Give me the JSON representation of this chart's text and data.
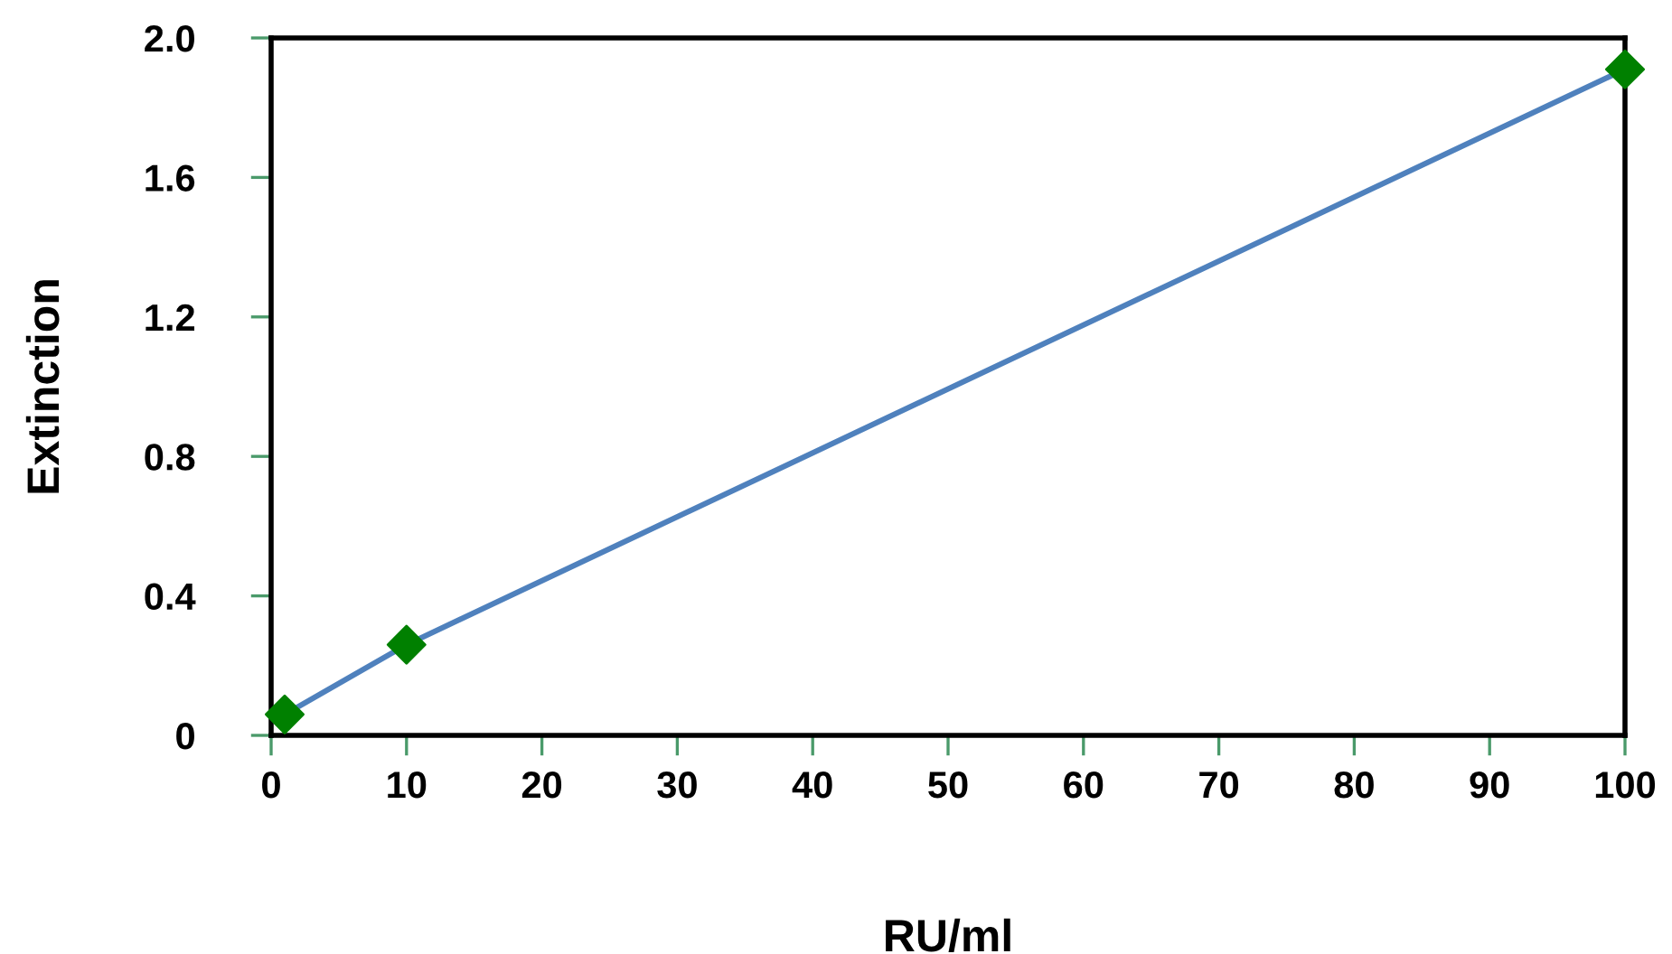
{
  "chart_data": {
    "type": "line",
    "xlabel": "RU/ml",
    "ylabel": "Extinction",
    "x": [
      1,
      10,
      100
    ],
    "series": [
      {
        "color": "#4f81bd",
        "colors": [
          "#008000",
          "#008000",
          "#008000"
        ],
        "values": [
          0.06,
          0.26,
          1.91
        ]
      }
    ],
    "marker": "diamond",
    "line_style": "solid",
    "grid": false,
    "legend": false,
    "xlim": [
      0,
      100
    ],
    "xticks": [
      0,
      10,
      20,
      30,
      40,
      50,
      60,
      70,
      80,
      90,
      100
    ],
    "ylim": [
      0,
      2.0
    ],
    "yticks": [
      0,
      {
        "value": 0.4,
        "label": "0.4"
      },
      {
        "value": 0.8,
        "label": "0.8"
      },
      {
        "value": 1.2,
        "label": "1.2"
      },
      {
        "value": 1.6,
        "label": "1.6"
      },
      {
        "value": 2.0,
        "label": "2.0"
      }
    ]
  }
}
